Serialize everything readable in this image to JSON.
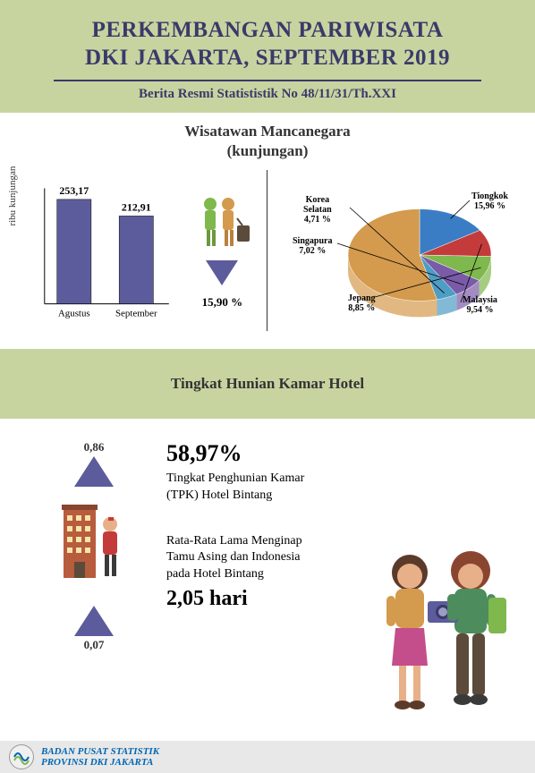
{
  "header": {
    "title_line1": "PERKEMBANGAN PARIWISATA",
    "title_line2": "DKI JAKARTA, SEPTEMBER 2019",
    "subtitle": "Berita Resmi Statististik No 48/11/31/Th.XXI",
    "title_color": "#3a3a6a",
    "band_color": "#c8d4a0"
  },
  "section1": {
    "title_line1": "Wisatawan Mancanegara",
    "title_line2": "(kunjungan)",
    "bar_chart": {
      "type": "bar",
      "categories": [
        "Agustus",
        "September"
      ],
      "values": [
        253.17,
        212.91
      ],
      "value_labels": [
        "253,17",
        "212,91"
      ],
      "bar_colors": [
        "#5c5c9c",
        "#5c5c9c"
      ],
      "ylabel": "ribu kunjungan",
      "ylim": [
        0,
        280
      ],
      "bar_width": 0.55,
      "background_color": "#ffffff",
      "border_color": "#000000"
    },
    "decrease": {
      "arrow_color": "#5c5c9c",
      "percent": "15,90 %"
    },
    "pie_chart": {
      "type": "pie",
      "slices": [
        {
          "label": "Tiongkok",
          "value": 15.96,
          "value_label": "15,96 %",
          "color": "#3b7dc4"
        },
        {
          "label": "Malaysia",
          "value": 9.54,
          "value_label": "9,54 %",
          "color": "#c43b3b"
        },
        {
          "label": "Jepang",
          "value": 8.85,
          "value_label": "8,85 %",
          "color": "#7fb84d"
        },
        {
          "label": "Singapura",
          "value": 7.02,
          "value_label": "7,02 %",
          "color": "#7a5ba8"
        },
        {
          "label": "Korea Selatan",
          "value": 4.71,
          "value_label": "4,71 %",
          "color": "#4d9dc4"
        },
        {
          "label": "_other",
          "value": 53.92,
          "value_label": "",
          "color": "#d49a4d"
        }
      ],
      "tilt_deg": 50,
      "depth": 18
    }
  },
  "section2": {
    "title": "Tingkat Hunian Kamar Hotel"
  },
  "section3": {
    "indicator1": {
      "value": "0,86",
      "arrow_color": "#5c5c9c"
    },
    "indicator2": {
      "value": "0,07",
      "arrow_color": "#5c5c9c"
    },
    "stat1": {
      "big": "58,97%",
      "desc_line1": "Tingkat Penghunian Kamar",
      "desc_line2": "(TPK) Hotel Bintang"
    },
    "stat2": {
      "desc_line1": "Rata-Rata  Lama Menginap",
      "desc_line2": "Tamu Asing dan  Indonesia",
      "desc_line3": "pada Hotel Bintang",
      "big": "2,05 hari"
    },
    "illustration_colors": {
      "hotel_building": "#b85c3e",
      "attendant": "#c43b3b",
      "tourist_girl_top": "#d49a4d",
      "tourist_girl_skirt": "#c44d8c",
      "tourist_boy_top": "#4d8c5c",
      "camera": "#5c5c9c"
    }
  },
  "footer": {
    "line1": "BADAN PUSAT STATISTIK",
    "line2": "PROVINSI DKI JAKARTA",
    "text_color": "#0066b3",
    "logo_colors": [
      "#0066b3",
      "#7fb84d",
      "#d49a4d"
    ]
  }
}
